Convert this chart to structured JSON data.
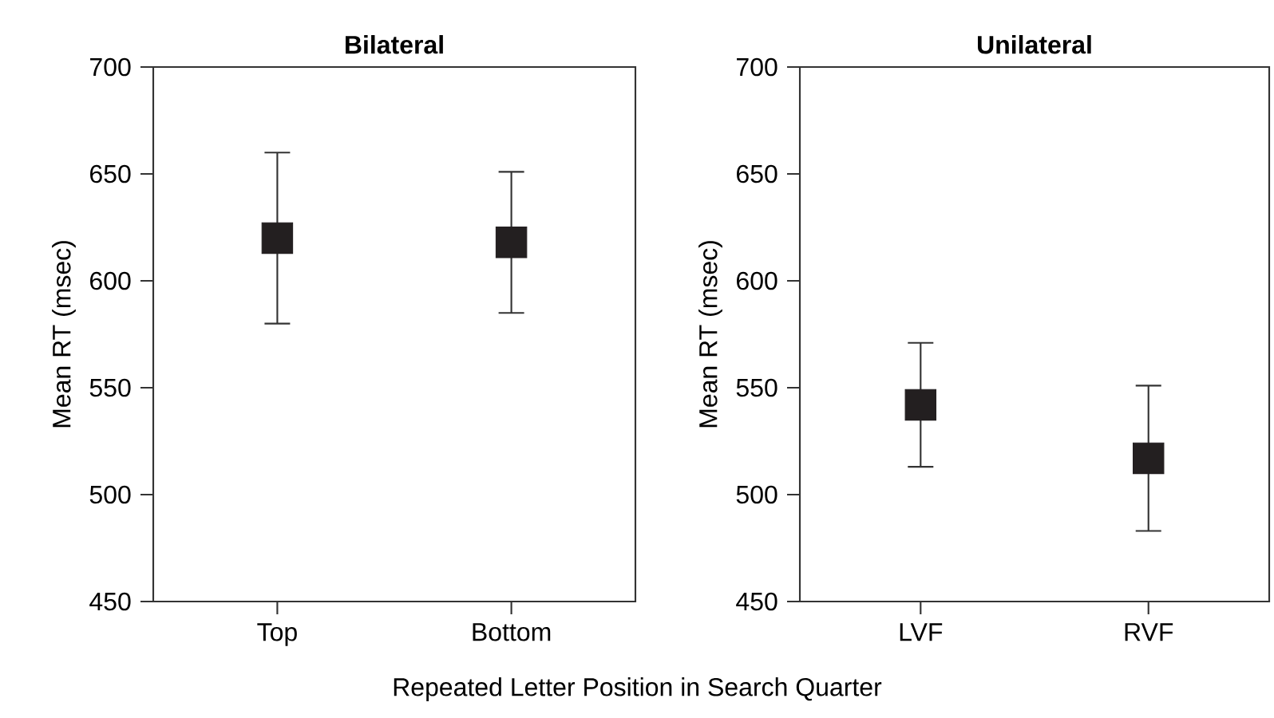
{
  "chart_data": [
    {
      "type": "scatter",
      "title": "Bilateral",
      "xlabel": "Repeated Letter Position in Search Quarter",
      "ylabel": "Mean RT (msec)",
      "categories": [
        "Top",
        "Bottom"
      ],
      "values": [
        620,
        618
      ],
      "errors": [
        40,
        33
      ],
      "color": "#231f20",
      "marker": "square",
      "ylim": [
        450,
        700
      ],
      "yticks": [
        450,
        500,
        550,
        600,
        650,
        700
      ],
      "grid": false
    },
    {
      "type": "scatter",
      "title": "Unilateral",
      "ylabel": "Mean RT (msec)",
      "categories": [
        "LVF",
        "RVF"
      ],
      "values": [
        542,
        517
      ],
      "errors": [
        29,
        34
      ],
      "color": "#231f20",
      "marker": "square",
      "ylim": [
        450,
        700
      ],
      "yticks": [
        450,
        500,
        550,
        600,
        650,
        700
      ],
      "grid": false
    }
  ]
}
